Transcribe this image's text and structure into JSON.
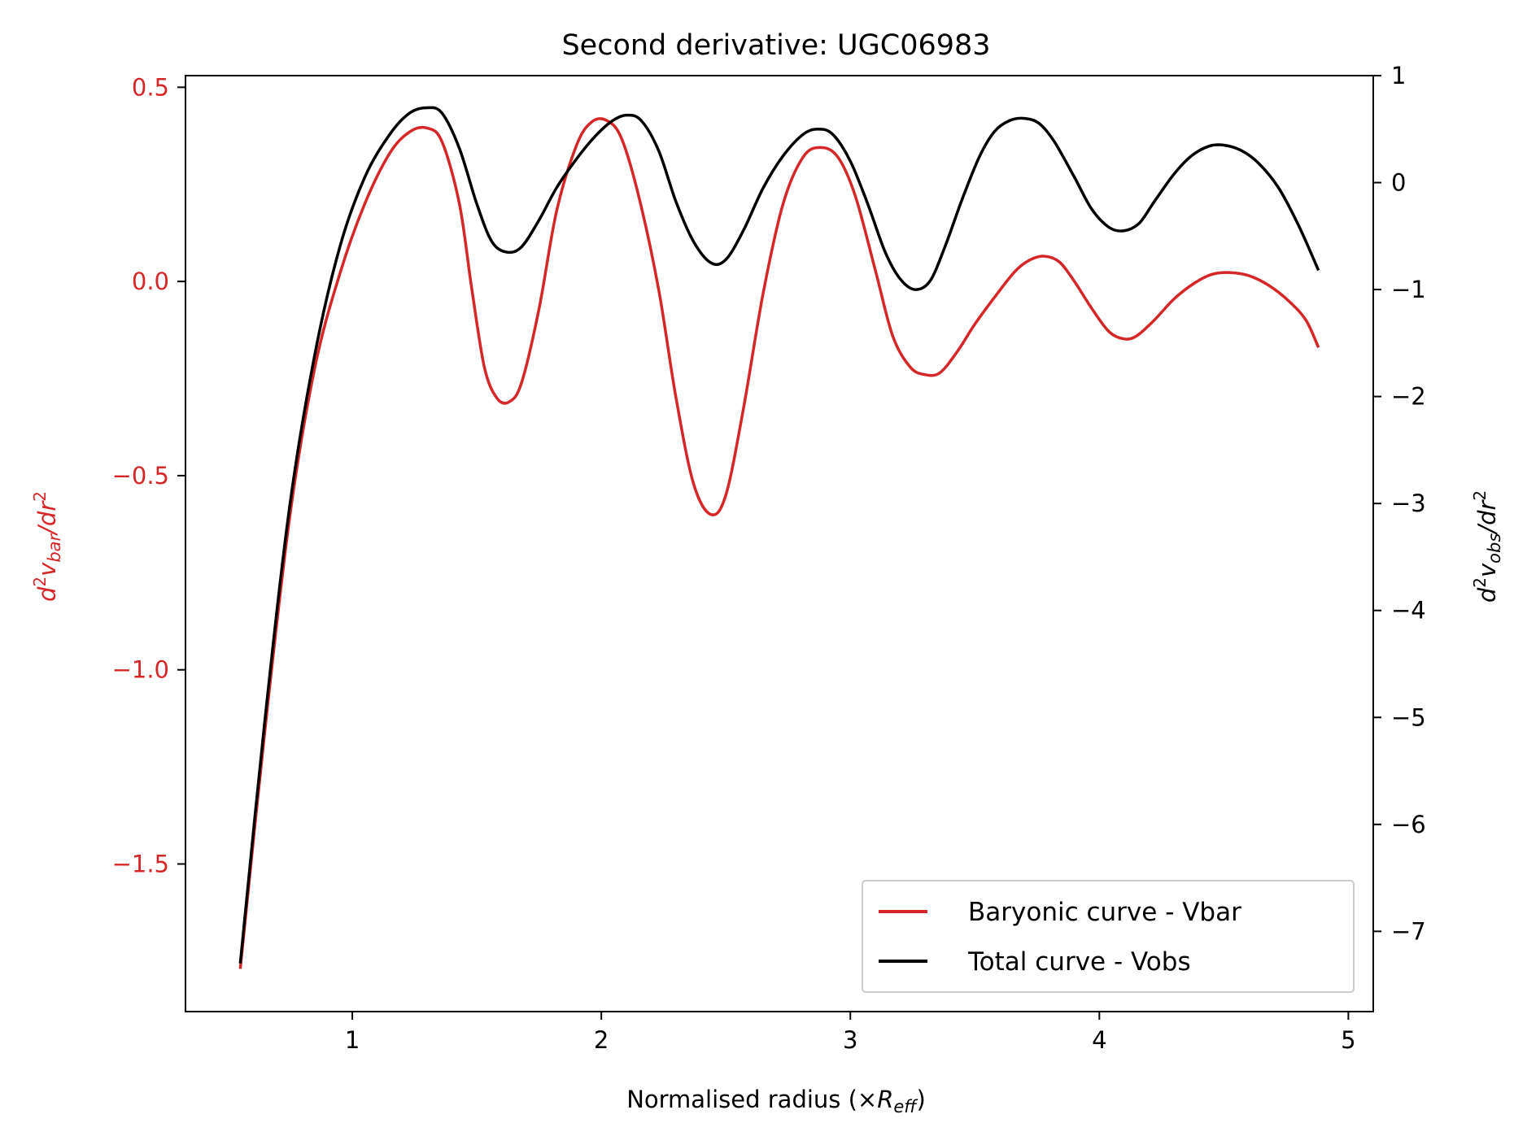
{
  "chart_data": {
    "type": "line",
    "title": "Second derivative: UGC06983",
    "xlabel": {
      "prefix": "Normalised radius (×",
      "var": "R",
      "sub": "eff",
      "suffix": ")"
    },
    "ylabel_left": {
      "text": "d²v_bar/dr²",
      "color": "#d62728"
    },
    "ylabel_right": {
      "text": "d²v_obs/dr²",
      "color": "#000000"
    },
    "xlim": [
      0.33,
      5.1
    ],
    "ylim_left": [
      -1.88,
      0.53
    ],
    "ylim_right": [
      -7.75,
      1.0
    ],
    "xticks": [
      1,
      2,
      3,
      4,
      5
    ],
    "xtick_labels": [
      "1",
      "2",
      "3",
      "4",
      "5"
    ],
    "yticks_left": [
      0.5,
      0.0,
      -0.5,
      -1.0,
      -1.5
    ],
    "ytick_labels_left": [
      "0.5",
      "0.0",
      "−0.5",
      "−1.0",
      "−1.5"
    ],
    "yticks_right": [
      1,
      0,
      -1,
      -2,
      -3,
      -4,
      -5,
      -6,
      -7
    ],
    "ytick_labels_right": [
      "1",
      "0",
      "−1",
      "−2",
      "−3",
      "−4",
      "−5",
      "−6",
      "−7"
    ],
    "legend_position": "lower-right",
    "grid": false,
    "series": [
      {
        "name": "Baryonic curve - Vbar",
        "axis": "left",
        "color": "#d62728",
        "points": [
          [
            0.55,
            -1.77
          ],
          [
            0.65,
            -1.15
          ],
          [
            0.75,
            -0.6
          ],
          [
            0.85,
            -0.22
          ],
          [
            0.95,
            0.02
          ],
          [
            1.05,
            0.2
          ],
          [
            1.15,
            0.33
          ],
          [
            1.23,
            0.385
          ],
          [
            1.3,
            0.395
          ],
          [
            1.36,
            0.36
          ],
          [
            1.43,
            0.2
          ],
          [
            1.48,
            -0.02
          ],
          [
            1.53,
            -0.22
          ],
          [
            1.58,
            -0.3
          ],
          [
            1.63,
            -0.31
          ],
          [
            1.68,
            -0.26
          ],
          [
            1.75,
            -0.07
          ],
          [
            1.82,
            0.18
          ],
          [
            1.9,
            0.35
          ],
          [
            1.96,
            0.41
          ],
          [
            2.02,
            0.415
          ],
          [
            2.08,
            0.37
          ],
          [
            2.15,
            0.22
          ],
          [
            2.23,
            -0.02
          ],
          [
            2.3,
            -0.3
          ],
          [
            2.37,
            -0.52
          ],
          [
            2.44,
            -0.6
          ],
          [
            2.5,
            -0.55
          ],
          [
            2.57,
            -0.33
          ],
          [
            2.65,
            -0.03
          ],
          [
            2.73,
            0.2
          ],
          [
            2.81,
            0.32
          ],
          [
            2.88,
            0.345
          ],
          [
            2.95,
            0.32
          ],
          [
            3.02,
            0.22
          ],
          [
            3.1,
            0.03
          ],
          [
            3.17,
            -0.14
          ],
          [
            3.24,
            -0.22
          ],
          [
            3.3,
            -0.24
          ],
          [
            3.36,
            -0.235
          ],
          [
            3.43,
            -0.18
          ],
          [
            3.5,
            -0.11
          ],
          [
            3.58,
            -0.04
          ],
          [
            3.66,
            0.025
          ],
          [
            3.72,
            0.055
          ],
          [
            3.78,
            0.065
          ],
          [
            3.84,
            0.05
          ],
          [
            3.9,
            0.0
          ],
          [
            3.97,
            -0.07
          ],
          [
            4.04,
            -0.13
          ],
          [
            4.1,
            -0.148
          ],
          [
            4.15,
            -0.14
          ],
          [
            4.22,
            -0.1
          ],
          [
            4.3,
            -0.045
          ],
          [
            4.38,
            -0.005
          ],
          [
            4.45,
            0.018
          ],
          [
            4.52,
            0.023
          ],
          [
            4.6,
            0.015
          ],
          [
            4.68,
            -0.01
          ],
          [
            4.76,
            -0.05
          ],
          [
            4.83,
            -0.1
          ],
          [
            4.88,
            -0.17
          ]
        ]
      },
      {
        "name": "Total curve - Vobs",
        "axis": "right",
        "color": "#000000",
        "points": [
          [
            0.55,
            -7.3
          ],
          [
            0.65,
            -5.0
          ],
          [
            0.75,
            -3.0
          ],
          [
            0.85,
            -1.6
          ],
          [
            0.95,
            -0.6
          ],
          [
            1.05,
            0.05
          ],
          [
            1.15,
            0.45
          ],
          [
            1.23,
            0.65
          ],
          [
            1.3,
            0.7
          ],
          [
            1.36,
            0.65
          ],
          [
            1.43,
            0.32
          ],
          [
            1.5,
            -0.2
          ],
          [
            1.56,
            -0.55
          ],
          [
            1.62,
            -0.65
          ],
          [
            1.68,
            -0.6
          ],
          [
            1.75,
            -0.35
          ],
          [
            1.82,
            -0.05
          ],
          [
            1.9,
            0.22
          ],
          [
            1.97,
            0.42
          ],
          [
            2.04,
            0.57
          ],
          [
            2.1,
            0.63
          ],
          [
            2.16,
            0.58
          ],
          [
            2.23,
            0.3
          ],
          [
            2.3,
            -0.18
          ],
          [
            2.37,
            -0.55
          ],
          [
            2.44,
            -0.75
          ],
          [
            2.5,
            -0.72
          ],
          [
            2.57,
            -0.45
          ],
          [
            2.65,
            -0.05
          ],
          [
            2.73,
            0.25
          ],
          [
            2.81,
            0.45
          ],
          [
            2.87,
            0.5
          ],
          [
            2.93,
            0.45
          ],
          [
            3.0,
            0.2
          ],
          [
            3.07,
            -0.2
          ],
          [
            3.14,
            -0.65
          ],
          [
            3.2,
            -0.9
          ],
          [
            3.26,
            -1.0
          ],
          [
            3.32,
            -0.92
          ],
          [
            3.38,
            -0.6
          ],
          [
            3.45,
            -0.15
          ],
          [
            3.52,
            0.25
          ],
          [
            3.58,
            0.48
          ],
          [
            3.64,
            0.58
          ],
          [
            3.7,
            0.6
          ],
          [
            3.76,
            0.55
          ],
          [
            3.82,
            0.38
          ],
          [
            3.9,
            0.05
          ],
          [
            3.97,
            -0.25
          ],
          [
            4.04,
            -0.42
          ],
          [
            4.1,
            -0.45
          ],
          [
            4.16,
            -0.38
          ],
          [
            4.22,
            -0.18
          ],
          [
            4.3,
            0.08
          ],
          [
            4.37,
            0.25
          ],
          [
            4.44,
            0.34
          ],
          [
            4.5,
            0.35
          ],
          [
            4.57,
            0.3
          ],
          [
            4.64,
            0.18
          ],
          [
            4.72,
            -0.05
          ],
          [
            4.8,
            -0.4
          ],
          [
            4.88,
            -0.82
          ]
        ]
      }
    ]
  }
}
